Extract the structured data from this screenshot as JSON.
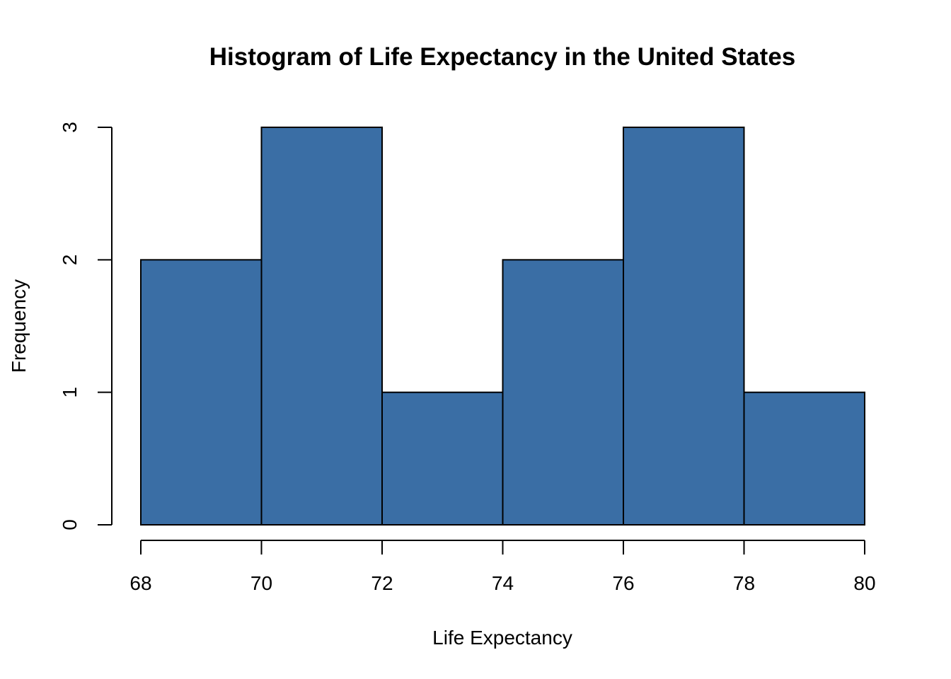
{
  "chart_data": {
    "type": "bar",
    "title": "Histogram of Life Expectancy in the United States",
    "xlabel": "Life Expectancy",
    "ylabel": "Frequency",
    "bins": [
      {
        "start": 68,
        "end": 70,
        "count": 2
      },
      {
        "start": 70,
        "end": 72,
        "count": 3
      },
      {
        "start": 72,
        "end": 74,
        "count": 1
      },
      {
        "start": 74,
        "end": 76,
        "count": 2
      },
      {
        "start": 76,
        "end": 78,
        "count": 3
      },
      {
        "start": 78,
        "end": 80,
        "count": 1
      }
    ],
    "x_ticks": [
      "68",
      "70",
      "72",
      "74",
      "76",
      "78",
      "80"
    ],
    "y_ticks": [
      "0",
      "1",
      "2",
      "3"
    ],
    "xlim": [
      68,
      80
    ],
    "ylim": [
      0,
      3
    ],
    "grid": false,
    "legend": "none",
    "bar_color": "#3a6ea5",
    "edge_color": "#000000"
  }
}
